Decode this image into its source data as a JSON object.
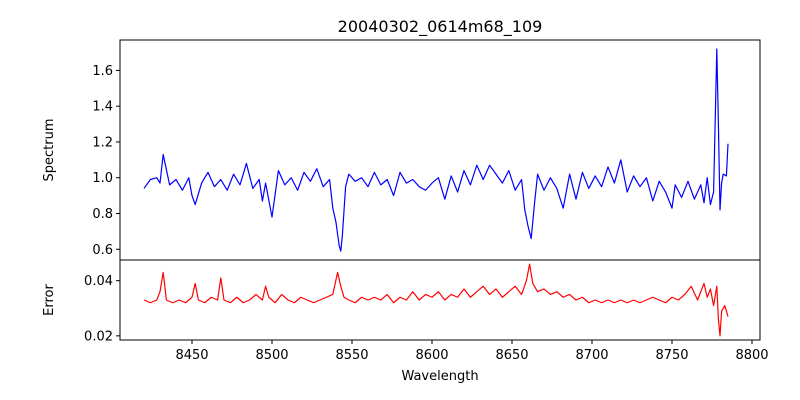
{
  "chart_data": [
    {
      "type": "line",
      "title": "20040302_0614m68_109",
      "xlabel": "",
      "ylabel": "Spectrum",
      "xlim": [
        8405,
        8805
      ],
      "ylim": [
        0.54,
        1.77
      ],
      "yticks": [
        "0.6",
        "0.8",
        "1.0",
        "1.2",
        "1.4",
        "1.6"
      ],
      "grid": false,
      "series": [
        {
          "color": "#0000ff",
          "x": [
            8420,
            8424,
            8428,
            8430,
            8432,
            8436,
            8440,
            8444,
            8448,
            8450,
            8452,
            8456,
            8460,
            8464,
            8468,
            8472,
            8476,
            8480,
            8484,
            8488,
            8492,
            8494,
            8496,
            8500,
            8504,
            8508,
            8512,
            8516,
            8520,
            8524,
            8528,
            8532,
            8536,
            8538,
            8540,
            8542,
            8543,
            8544,
            8546,
            8548,
            8552,
            8556,
            8560,
            8564,
            8568,
            8572,
            8576,
            8580,
            8584,
            8588,
            8592,
            8596,
            8600,
            8604,
            8608,
            8612,
            8616,
            8620,
            8624,
            8628,
            8632,
            8636,
            8640,
            8644,
            8648,
            8652,
            8656,
            8658,
            8660,
            8662,
            8664,
            8666,
            8670,
            8674,
            8678,
            8682,
            8686,
            8690,
            8694,
            8698,
            8702,
            8706,
            8710,
            8714,
            8718,
            8722,
            8726,
            8730,
            8734,
            8738,
            8742,
            8746,
            8750,
            8752,
            8756,
            8760,
            8764,
            8768,
            8770,
            8772,
            8774,
            8776,
            8778,
            8779,
            8780,
            8781,
            8782,
            8784,
            8785
          ],
          "y": [
            0.94,
            0.99,
            1.0,
            0.97,
            1.13,
            0.96,
            0.99,
            0.93,
            1.0,
            0.9,
            0.85,
            0.97,
            1.03,
            0.95,
            0.99,
            0.93,
            1.02,
            0.96,
            1.08,
            0.94,
            0.99,
            0.87,
            0.97,
            0.78,
            1.04,
            0.96,
            1.0,
            0.93,
            1.03,
            0.98,
            1.05,
            0.95,
            0.99,
            0.83,
            0.75,
            0.62,
            0.59,
            0.68,
            0.95,
            1.02,
            0.98,
            1.0,
            0.95,
            1.03,
            0.96,
            0.99,
            0.9,
            1.03,
            0.97,
            0.99,
            0.95,
            0.93,
            0.97,
            1.0,
            0.88,
            1.01,
            0.92,
            1.04,
            0.96,
            1.07,
            0.99,
            1.07,
            1.02,
            0.97,
            1.04,
            0.93,
            0.99,
            0.82,
            0.73,
            0.66,
            0.85,
            1.02,
            0.93,
            1.0,
            0.94,
            0.83,
            1.02,
            0.88,
            1.03,
            0.94,
            1.01,
            0.95,
            1.06,
            0.97,
            1.1,
            0.92,
            1.01,
            0.95,
            1.0,
            0.87,
            0.98,
            0.92,
            0.83,
            0.96,
            0.89,
            0.98,
            0.88,
            0.96,
            0.86,
            1.0,
            0.85,
            0.92,
            1.72,
            1.3,
            0.82,
            0.97,
            1.02,
            1.01,
            1.19
          ]
        }
      ]
    },
    {
      "type": "line",
      "title": "",
      "xlabel": "Wavelength",
      "ylabel": "Error",
      "xlim": [
        8405,
        8805
      ],
      "ylim": [
        0.0185,
        0.0475
      ],
      "xticks": [
        "8450",
        "8500",
        "8550",
        "8600",
        "8650",
        "8700",
        "8750",
        "8800"
      ],
      "yticks": [
        "0.02",
        "0.04"
      ],
      "grid": false,
      "series": [
        {
          "color": "#ff0000",
          "x": [
            8420,
            8424,
            8428,
            8430,
            8432,
            8434,
            8438,
            8442,
            8446,
            8450,
            8452,
            8454,
            8458,
            8462,
            8466,
            8468,
            8470,
            8474,
            8478,
            8482,
            8486,
            8490,
            8494,
            8496,
            8498,
            8502,
            8506,
            8510,
            8514,
            8518,
            8522,
            8526,
            8530,
            8534,
            8538,
            8541,
            8543,
            8545,
            8548,
            8552,
            8556,
            8560,
            8564,
            8568,
            8572,
            8576,
            8580,
            8584,
            8588,
            8592,
            8596,
            8600,
            8604,
            8608,
            8612,
            8616,
            8620,
            8624,
            8628,
            8632,
            8636,
            8640,
            8644,
            8648,
            8652,
            8656,
            8659,
            8661,
            8663,
            8666,
            8670,
            8674,
            8678,
            8682,
            8686,
            8690,
            8694,
            8698,
            8702,
            8706,
            8710,
            8714,
            8718,
            8722,
            8726,
            8730,
            8734,
            8738,
            8742,
            8746,
            8750,
            8754,
            8758,
            8762,
            8766,
            8770,
            8772,
            8774,
            8776,
            8778,
            8779,
            8780,
            8781,
            8783,
            8785
          ],
          "y": [
            0.033,
            0.032,
            0.033,
            0.036,
            0.043,
            0.033,
            0.032,
            0.033,
            0.032,
            0.034,
            0.039,
            0.033,
            0.032,
            0.034,
            0.033,
            0.041,
            0.033,
            0.032,
            0.034,
            0.032,
            0.033,
            0.035,
            0.033,
            0.038,
            0.034,
            0.032,
            0.035,
            0.033,
            0.032,
            0.034,
            0.033,
            0.032,
            0.033,
            0.034,
            0.035,
            0.043,
            0.038,
            0.034,
            0.033,
            0.032,
            0.034,
            0.033,
            0.034,
            0.033,
            0.035,
            0.032,
            0.034,
            0.033,
            0.036,
            0.033,
            0.035,
            0.034,
            0.036,
            0.033,
            0.035,
            0.034,
            0.037,
            0.034,
            0.036,
            0.038,
            0.035,
            0.037,
            0.034,
            0.036,
            0.038,
            0.035,
            0.04,
            0.046,
            0.039,
            0.036,
            0.037,
            0.035,
            0.036,
            0.034,
            0.035,
            0.033,
            0.034,
            0.032,
            0.033,
            0.032,
            0.033,
            0.032,
            0.033,
            0.032,
            0.033,
            0.032,
            0.033,
            0.034,
            0.033,
            0.032,
            0.034,
            0.033,
            0.035,
            0.038,
            0.033,
            0.039,
            0.034,
            0.037,
            0.031,
            0.038,
            0.026,
            0.02,
            0.029,
            0.031,
            0.027
          ]
        }
      ]
    }
  ]
}
